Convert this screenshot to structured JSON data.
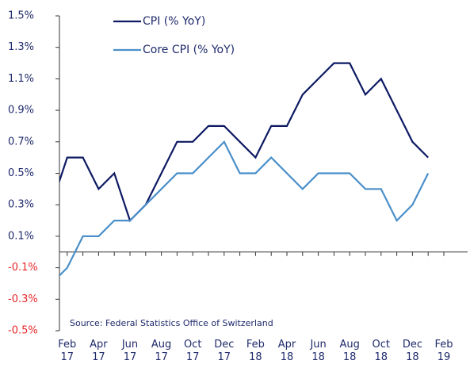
{
  "chart_data": {
    "type": "line",
    "categories": [
      null,
      "Feb 17",
      null,
      "Apr 17",
      null,
      "Jun 17",
      null,
      "Aug 17",
      null,
      "Oct 17",
      null,
      "Dec 17",
      null,
      "Feb 18",
      null,
      "Apr 18",
      null,
      "Jun 18",
      null,
      "Aug 18",
      null,
      "Oct 18",
      null,
      "Dec 18",
      null,
      "Feb 19"
    ],
    "series": [
      {
        "name": "CPI (% YoY)",
        "color": "#0d1a63",
        "values": [
          0.3,
          0.6,
          0.6,
          0.4,
          0.5,
          0.2,
          0.3,
          0.5,
          0.7,
          0.7,
          0.8,
          0.8,
          0.7,
          0.6,
          0.8,
          0.8,
          1.0,
          1.1,
          1.2,
          1.2,
          1.0,
          1.1,
          0.9,
          0.7,
          0.6,
          null
        ]
      },
      {
        "name": "Core CPI (% YoY)",
        "color": "#4a8fc9",
        "values": [
          -0.2,
          -0.1,
          0.1,
          0.1,
          0.2,
          0.2,
          0.3,
          0.4,
          0.5,
          0.5,
          0.6,
          0.7,
          0.5,
          0.5,
          0.6,
          0.5,
          0.4,
          0.5,
          0.5,
          0.5,
          0.4,
          0.4,
          0.2,
          0.3,
          0.5,
          null
        ]
      }
    ],
    "ylim": [
      -0.5,
      1.5
    ],
    "yticks": [
      {
        "value": -0.5,
        "label": "-0.5%"
      },
      {
        "value": -0.3,
        "label": "-0.3%"
      },
      {
        "value": -0.1,
        "label": "-0.1%"
      },
      {
        "value": 0.1,
        "label": "0.1%"
      },
      {
        "value": 0.3,
        "label": "0.3%"
      },
      {
        "value": 0.5,
        "label": "0.5%"
      },
      {
        "value": 0.7,
        "label": "0.7%"
      },
      {
        "value": 0.9,
        "label": "0.9%"
      },
      {
        "value": 1.1,
        "label": "1.1%"
      },
      {
        "value": 1.3,
        "label": "1.3%"
      },
      {
        "value": 1.5,
        "label": "1.5%"
      }
    ],
    "tick_color": "#1f2a6b",
    "negative_tick_color": "#e8262a",
    "grid": false,
    "legend": "top-left",
    "annotation": "Source: Federal Statistics Office of Switzerland"
  }
}
